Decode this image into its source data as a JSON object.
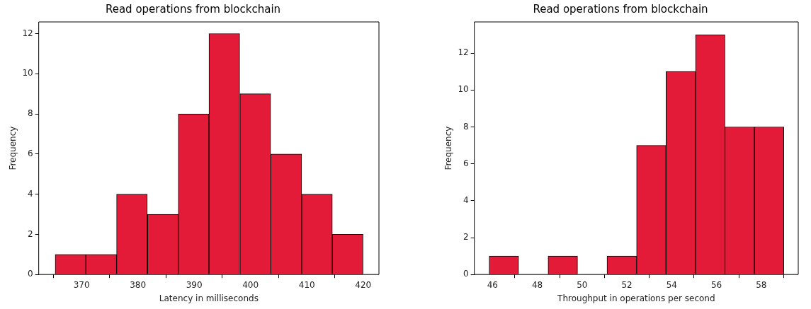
{
  "chart_data": [
    {
      "type": "histogram",
      "title": "Read operations from blockchain",
      "xlabel": "Latency in milliseconds",
      "ylabel": "Frequency",
      "color": "#e31b38",
      "bins": [
        365.3,
        370.8,
        376.2,
        381.7,
        387.2,
        392.6,
        398.1,
        403.6,
        409.1,
        414.5,
        420
      ],
      "values": [
        1,
        1,
        4,
        3,
        8,
        12,
        9,
        6,
        4,
        2
      ],
      "xlim": [
        362.4,
        422.8
      ],
      "xticks": [
        370,
        380,
        390,
        400,
        410,
        420
      ],
      "ylim": [
        0,
        12.58
      ],
      "yticks": [
        0,
        2,
        4,
        6,
        8,
        10,
        12
      ]
    },
    {
      "type": "histogram",
      "title": "Read operations from blockchain",
      "xlabel": "Throughput in operations per second",
      "ylabel": "Frequency",
      "color": "#e31b38",
      "bins": [
        45.85,
        47.17,
        48.48,
        49.8,
        51.11,
        52.43,
        53.75,
        55.06,
        56.38,
        57.69,
        59.01
      ],
      "values": [
        1,
        0,
        1,
        0,
        1,
        7,
        11,
        13,
        8,
        8
      ],
      "xlim": [
        45.19,
        59.65
      ],
      "xticks": [
        46,
        48,
        50,
        52,
        54,
        56,
        58
      ],
      "ylim": [
        0,
        13.69
      ],
      "yticks": [
        0,
        2,
        4,
        6,
        8,
        10,
        12
      ]
    }
  ]
}
